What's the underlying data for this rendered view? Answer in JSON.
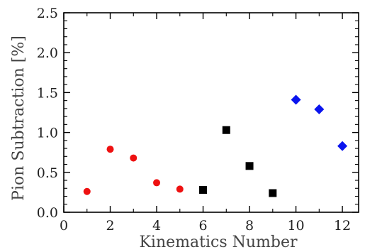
{
  "chart_data": {
    "type": "scatter",
    "title": "",
    "xlabel": "Kinematics Number",
    "ylabel": "Pion Subtraction [%]",
    "xlim": [
      0,
      12.7
    ],
    "ylim": [
      0,
      2.5
    ],
    "x_ticks": [
      0,
      2,
      4,
      6,
      8,
      10,
      12
    ],
    "x_tick_labels": [
      "0",
      "2",
      "4",
      "6",
      "8",
      "10",
      "12"
    ],
    "y_ticks": [
      0.0,
      0.5,
      1.0,
      1.5,
      2.0,
      2.5
    ],
    "y_tick_labels": [
      "0.0",
      "0.5",
      "1.0",
      "1.5",
      "2.0",
      "2.5"
    ],
    "x_minor_step": 1,
    "y_minor_step": 0.1,
    "grid": false,
    "legend": "none",
    "series": [
      {
        "marker": "circle",
        "color": "#ee1111",
        "points": [
          {
            "x": 1,
            "y": 0.26
          },
          {
            "x": 2,
            "y": 0.79
          },
          {
            "x": 3,
            "y": 0.68
          },
          {
            "x": 4,
            "y": 0.37
          },
          {
            "x": 5,
            "y": 0.29
          }
        ]
      },
      {
        "marker": "square",
        "color": "#000000",
        "points": [
          {
            "x": 6,
            "y": 0.28
          },
          {
            "x": 7,
            "y": 1.03
          },
          {
            "x": 8,
            "y": 0.58
          },
          {
            "x": 9,
            "y": 0.24
          }
        ]
      },
      {
        "marker": "diamond",
        "color": "#0a14ee",
        "points": [
          {
            "x": 10,
            "y": 1.41
          },
          {
            "x": 11,
            "y": 1.29
          },
          {
            "x": 12,
            "y": 0.83
          }
        ]
      }
    ]
  }
}
